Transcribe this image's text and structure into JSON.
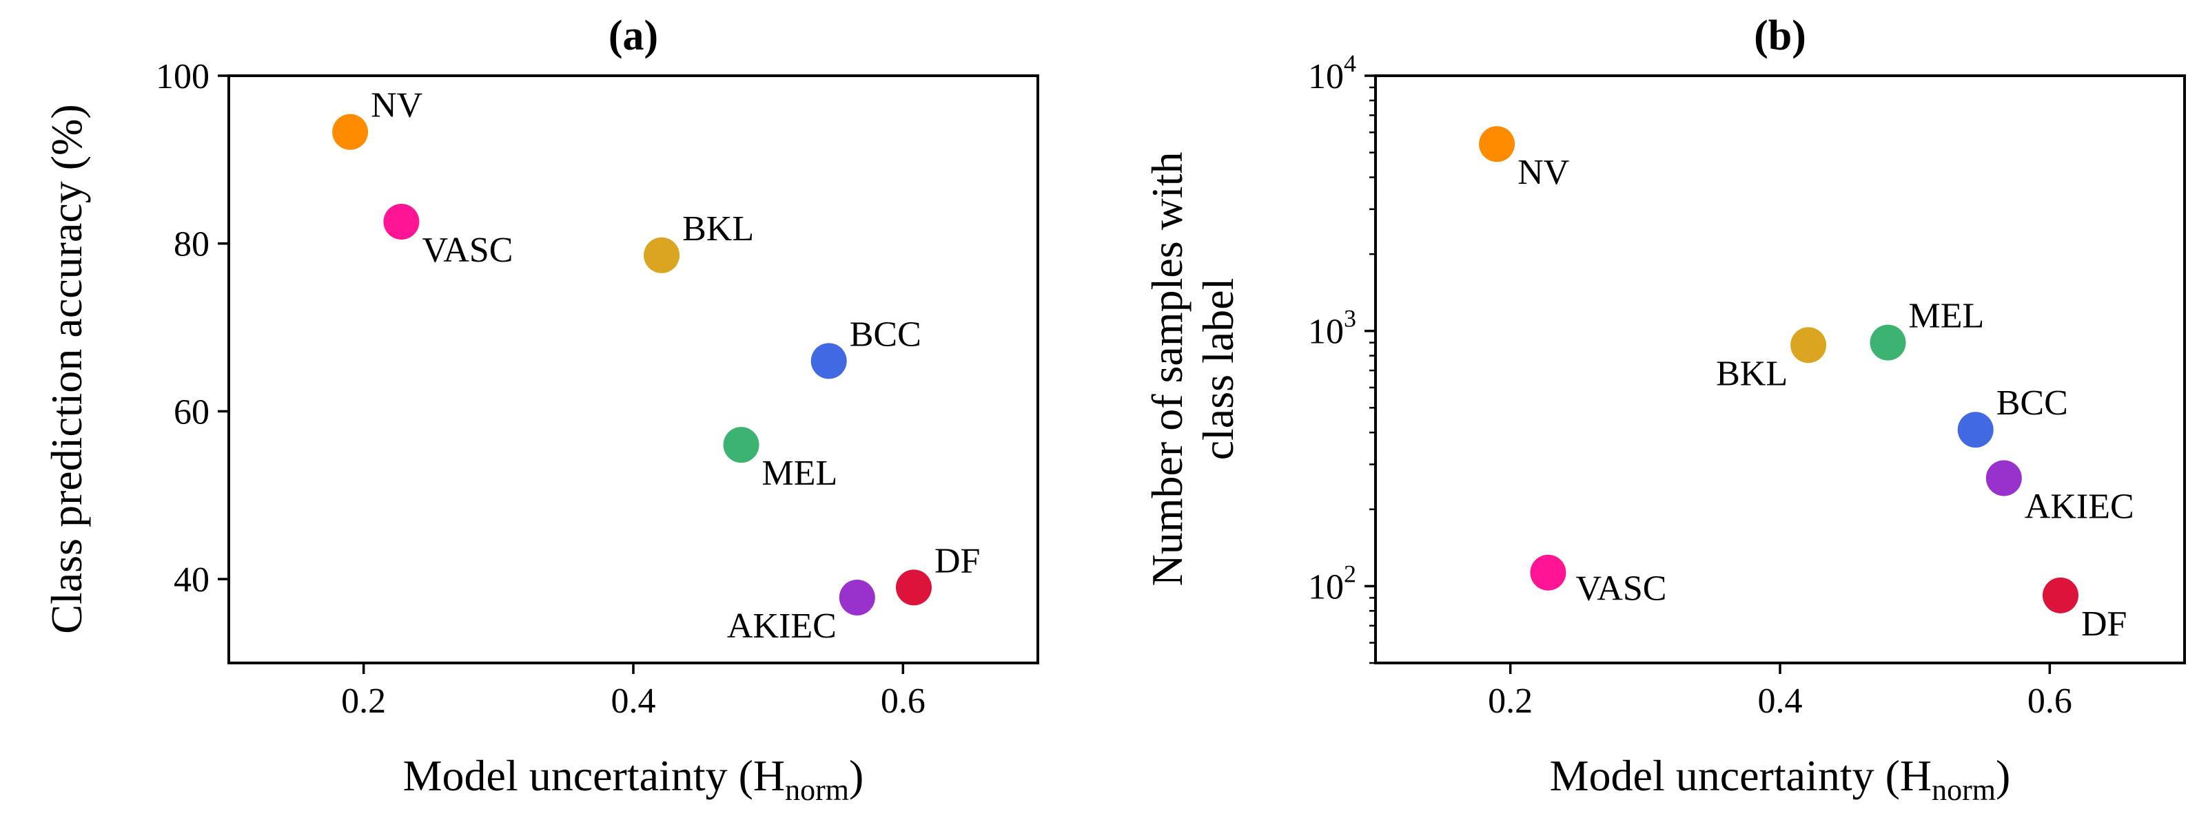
{
  "chart_data": [
    {
      "type": "scatter",
      "title": "(a)",
      "xlabel": "Model uncertainty (H",
      "xlabel_sub": "norm",
      "xlabel_close": ")",
      "ylabel": "Class prediction accuracy (%)",
      "xlim": [
        0.1,
        0.7
      ],
      "ylim": [
        30,
        100
      ],
      "yscale": "linear",
      "xticks": [
        0.2,
        0.4,
        0.6
      ],
      "xtick_labels": [
        "0.2",
        "0.4",
        "0.6"
      ],
      "yticks": [
        40,
        60,
        80,
        100
      ],
      "ytick_labels": [
        "40",
        "60",
        "80",
        "100"
      ],
      "points": [
        {
          "label": "NV",
          "x": 0.19,
          "y": 93.3,
          "color": "#FF8C00",
          "label_side": "upper-right"
        },
        {
          "label": "VASC",
          "x": 0.228,
          "y": 82.6,
          "color": "#FF1493",
          "label_side": "lower-right"
        },
        {
          "label": "BKL",
          "x": 0.421,
          "y": 78.6,
          "color": "#DAA520",
          "label_side": "upper-right"
        },
        {
          "label": "BCC",
          "x": 0.545,
          "y": 66.0,
          "color": "#4169E1",
          "label_side": "upper-right"
        },
        {
          "label": "MEL",
          "x": 0.48,
          "y": 56.0,
          "color": "#3CB371",
          "label_side": "lower-right"
        },
        {
          "label": "DF",
          "x": 0.608,
          "y": 39.0,
          "color": "#DC143C",
          "label_side": "upper-right"
        },
        {
          "label": "AKIEC",
          "x": 0.566,
          "y": 37.8,
          "color": "#9932CC",
          "label_side": "lower-left"
        }
      ]
    },
    {
      "type": "scatter",
      "title": "(b)",
      "xlabel": "Model uncertainty (H",
      "xlabel_sub": "norm",
      "xlabel_close": ")",
      "ylabel": [
        "Number of samples with",
        "class label"
      ],
      "xlim": [
        0.1,
        0.7
      ],
      "ylim": [
        50,
        10000
      ],
      "yscale": "log",
      "xticks": [
        0.2,
        0.4,
        0.6
      ],
      "xtick_labels": [
        "0.2",
        "0.4",
        "0.6"
      ],
      "yticks": [
        100,
        1000,
        10000
      ],
      "ytick_labels": [
        {
          "base": "10",
          "exp": "2"
        },
        {
          "base": "10",
          "exp": "3"
        },
        {
          "base": "10",
          "exp": "4"
        }
      ],
      "points": [
        {
          "label": "NV",
          "x": 0.19,
          "y": 5400,
          "color": "#FF8C00",
          "label_side": "lower-right"
        },
        {
          "label": "BKL",
          "x": 0.421,
          "y": 880,
          "color": "#DAA520",
          "label_side": "lower-left"
        },
        {
          "label": "MEL",
          "x": 0.48,
          "y": 900,
          "color": "#3CB371",
          "label_side": "upper-right"
        },
        {
          "label": "BCC",
          "x": 0.545,
          "y": 410,
          "color": "#4169E1",
          "label_side": "upper-right"
        },
        {
          "label": "AKIEC",
          "x": 0.566,
          "y": 265,
          "color": "#9932CC",
          "label_side": "lower-right"
        },
        {
          "label": "VASC",
          "x": 0.228,
          "y": 113,
          "color": "#FF1493",
          "label_side": "right"
        },
        {
          "label": "DF",
          "x": 0.608,
          "y": 92,
          "color": "#DC143C",
          "label_side": "lower-right"
        }
      ]
    }
  ]
}
